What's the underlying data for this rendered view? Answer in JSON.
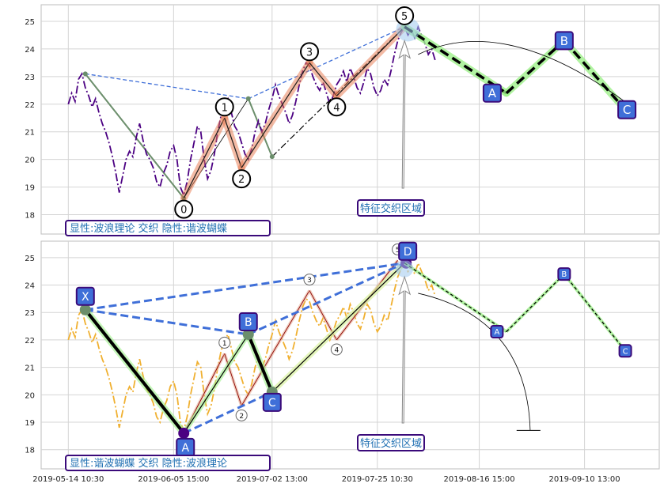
{
  "chart_data": {
    "type": "line",
    "x_ticks": [
      "2019-05-14 10:30",
      "2019-06-05 15:00",
      "2019-07-02 13:00",
      "2019-07-25 10:30",
      "2019-08-16 15:00",
      "2019-09-10 13:00"
    ],
    "y_ticks": [
      "18",
      "19",
      "20",
      "21",
      "22",
      "23",
      "24",
      "25"
    ],
    "ylim": [
      17.3,
      25.6
    ],
    "grid": true,
    "panels": [
      {
        "id": "top",
        "legend_text": "显性:波浪理论 交织 隐性:谐波蝴蝶",
        "legend_placement": "bottom-left",
        "zone_label": "特征交织区域",
        "price_color": "#4b0082",
        "price_series": [
          [
            0,
            22.0
          ],
          [
            1,
            22.4
          ],
          [
            2,
            22.1
          ],
          [
            3,
            22.9
          ],
          [
            4,
            23.1
          ],
          [
            5,
            22.6
          ],
          [
            6,
            22.3
          ],
          [
            7,
            21.9
          ],
          [
            8,
            22.2
          ],
          [
            9,
            21.7
          ],
          [
            10,
            21.3
          ],
          [
            11,
            21.0
          ],
          [
            12,
            20.6
          ],
          [
            13,
            20.1
          ],
          [
            14,
            19.5
          ],
          [
            15,
            18.8
          ],
          [
            16,
            19.4
          ],
          [
            17,
            20.0
          ],
          [
            18,
            20.3
          ],
          [
            19,
            20.1
          ],
          [
            20,
            20.8
          ],
          [
            21,
            21.3
          ],
          [
            22,
            20.7
          ],
          [
            23,
            20.2
          ],
          [
            24,
            20.0
          ],
          [
            25,
            19.7
          ],
          [
            26,
            19.2
          ],
          [
            27,
            19.0
          ],
          [
            28,
            19.5
          ],
          [
            29,
            19.8
          ],
          [
            30,
            20.3
          ],
          [
            31,
            20.5
          ],
          [
            32,
            20.0
          ],
          [
            33,
            19.0
          ],
          [
            34,
            18.7
          ],
          [
            35,
            19.2
          ],
          [
            36,
            20.0
          ],
          [
            37,
            20.6
          ],
          [
            38,
            21.2
          ],
          [
            39,
            21.0
          ],
          [
            40,
            20.0
          ],
          [
            41,
            19.3
          ],
          [
            42,
            19.6
          ],
          [
            43,
            20.2
          ],
          [
            44,
            21.0
          ],
          [
            45,
            21.6
          ],
          [
            46,
            22.0
          ],
          [
            47,
            22.2
          ],
          [
            48,
            21.7
          ],
          [
            49,
            21.2
          ],
          [
            50,
            21.0
          ],
          [
            51,
            20.6
          ],
          [
            52,
            20.2
          ],
          [
            53,
            20.0
          ],
          [
            54,
            20.4
          ],
          [
            55,
            21.0
          ],
          [
            56,
            21.4
          ],
          [
            57,
            21.0
          ],
          [
            58,
            21.3
          ],
          [
            59,
            21.8
          ],
          [
            60,
            22.2
          ],
          [
            61,
            22.7
          ],
          [
            62,
            22.3
          ],
          [
            63,
            22.0
          ],
          [
            64,
            21.7
          ],
          [
            65,
            21.3
          ],
          [
            66,
            21.6
          ],
          [
            67,
            22.1
          ],
          [
            68,
            22.7
          ],
          [
            69,
            23.2
          ],
          [
            70,
            23.5
          ],
          [
            71,
            23.4
          ],
          [
            72,
            23.0
          ],
          [
            73,
            22.7
          ],
          [
            74,
            22.5
          ],
          [
            75,
            22.8
          ],
          [
            76,
            22.4
          ],
          [
            77,
            22.0
          ],
          [
            78,
            22.3
          ],
          [
            79,
            22.7
          ],
          [
            80,
            22.9
          ],
          [
            81,
            23.2
          ],
          [
            82,
            22.8
          ],
          [
            83,
            23.3
          ],
          [
            84,
            23.0
          ],
          [
            85,
            22.6
          ],
          [
            86,
            22.4
          ],
          [
            87,
            22.8
          ],
          [
            88,
            23.3
          ],
          [
            89,
            23.1
          ],
          [
            90,
            22.6
          ],
          [
            91,
            22.3
          ],
          [
            92,
            22.5
          ],
          [
            93,
            22.9
          ],
          [
            94,
            22.7
          ],
          [
            95,
            23.2
          ],
          [
            96,
            23.8
          ],
          [
            97,
            24.3
          ],
          [
            98,
            24.6
          ],
          [
            99,
            24.8
          ],
          [
            100,
            24.5
          ],
          [
            101,
            24.7
          ],
          [
            102,
            24.4
          ],
          [
            103,
            24.8
          ],
          [
            104,
            24.5
          ],
          [
            105,
            24.2
          ],
          [
            106,
            23.8
          ],
          [
            107,
            24.0
          ],
          [
            108,
            23.6
          ]
        ],
        "wave_points": [
          {
            "label": "0",
            "x": 34,
            "y": 18.6
          },
          {
            "label": "1",
            "x": 46,
            "y": 21.5
          },
          {
            "label": "2",
            "x": 51,
            "y": 19.7
          },
          {
            "label": "3",
            "x": 71,
            "y": 23.5
          },
          {
            "label": "4",
            "x": 79,
            "y": 22.3
          },
          {
            "label": "5",
            "x": 99,
            "y": 24.8
          }
        ],
        "projection_points": [
          {
            "label": "A",
            "x": 129,
            "y": 22.4
          },
          {
            "label": "B",
            "x": 146,
            "y": 24.3
          },
          {
            "label": "C",
            "x": 164,
            "y": 21.8
          }
        ],
        "hidden_pattern_points": [
          {
            "label": "X",
            "x": 5,
            "y": 23.1
          },
          {
            "label": "A",
            "x": 34,
            "y": 18.6
          },
          {
            "label": "B",
            "x": 53,
            "y": 22.2
          },
          {
            "label": "C",
            "x": 60,
            "y": 20.1
          },
          {
            "label": "D",
            "x": 99,
            "y": 24.8
          }
        ]
      },
      {
        "id": "bottom",
        "legend_text": "显性:谐波蝴蝶 交织 隐性:波浪理论",
        "legend_placement": "bottom-left",
        "zone_label": "特征交织区域",
        "price_color": "#f0b030",
        "harmonic_points": [
          {
            "label": "X",
            "x": 5,
            "y": 23.1
          },
          {
            "label": "A",
            "x": 34,
            "y": 18.6
          },
          {
            "label": "B",
            "x": 53,
            "y": 22.2
          },
          {
            "label": "C",
            "x": 60,
            "y": 20.1
          },
          {
            "label": "D",
            "x": 99,
            "y": 24.8
          }
        ],
        "projection_points": [
          {
            "label": "A",
            "x": 129,
            "y": 22.3
          },
          {
            "label": "B",
            "x": 146,
            "y": 24.4
          },
          {
            "label": "C",
            "x": 164,
            "y": 21.6
          }
        ],
        "hidden_wave_points": [
          {
            "label": "1",
            "x": 46,
            "y": 21.5
          },
          {
            "label": "2",
            "x": 51,
            "y": 19.6
          },
          {
            "label": "3",
            "x": 71,
            "y": 23.8
          },
          {
            "label": "4",
            "x": 79,
            "y": 22.0
          },
          {
            "label": "5",
            "x": 97,
            "y": 24.9
          }
        ]
      }
    ]
  }
}
